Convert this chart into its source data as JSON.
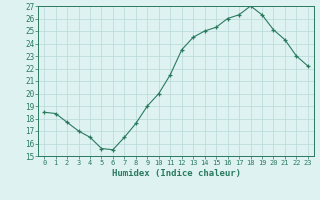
{
  "x": [
    0,
    1,
    2,
    3,
    4,
    5,
    6,
    7,
    8,
    9,
    10,
    11,
    12,
    13,
    14,
    15,
    16,
    17,
    18,
    19,
    20,
    21,
    22,
    23
  ],
  "y": [
    18.5,
    18.4,
    17.7,
    17.0,
    16.5,
    15.6,
    15.5,
    16.5,
    17.6,
    19.0,
    20.0,
    21.5,
    23.5,
    24.5,
    25.0,
    25.3,
    26.0,
    26.3,
    27.0,
    26.3,
    25.1,
    24.3,
    23.0,
    22.2
  ],
  "xlabel": "Humidex (Indice chaleur)",
  "ylim": [
    15,
    27
  ],
  "xlim_min": -0.5,
  "xlim_max": 23.5,
  "yticks": [
    15,
    16,
    17,
    18,
    19,
    20,
    21,
    22,
    23,
    24,
    25,
    26,
    27
  ],
  "xticks": [
    0,
    1,
    2,
    3,
    4,
    5,
    6,
    7,
    8,
    9,
    10,
    11,
    12,
    13,
    14,
    15,
    16,
    17,
    18,
    19,
    20,
    21,
    22,
    23
  ],
  "line_color": "#2a7a5e",
  "marker": "+",
  "bg_color": "#dff2f2",
  "grid_color": "#b8d8d8",
  "label_color": "#2a7a5e",
  "tick_color": "#2a7a5e",
  "spine_color": "#2a7a5e"
}
